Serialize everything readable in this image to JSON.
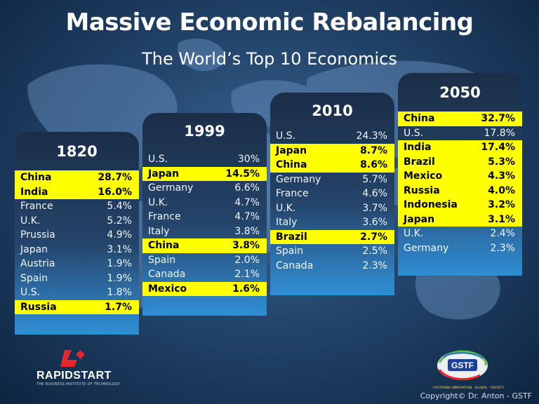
{
  "title": "Massive Economic Rebalancing",
  "subtitle": "The World’s Top 10 Economics",
  "panels": [
    {
      "year": "1820",
      "rows": [
        {
          "country": "China",
          "pct": "28.7%",
          "highlight": true
        },
        {
          "country": "India",
          "pct": "16.0%",
          "highlight": true
        },
        {
          "country": "France",
          "pct": "5.4%",
          "highlight": false
        },
        {
          "country": "U.K.",
          "pct": "5.2%",
          "highlight": false
        },
        {
          "country": "Prussia",
          "pct": "4.9%",
          "highlight": false
        },
        {
          "country": "Japan",
          "pct": "3.1%",
          "highlight": false
        },
        {
          "country": "Austria",
          "pct": "1.9%",
          "highlight": false
        },
        {
          "country": "Spain",
          "pct": "1.9%",
          "highlight": false
        },
        {
          "country": "U.S.",
          "pct": "1.8%",
          "highlight": false
        },
        {
          "country": "Russia",
          "pct": "1.7%",
          "highlight": true
        }
      ]
    },
    {
      "year": "1999",
      "rows": [
        {
          "country": "U.S.",
          "pct": "30%",
          "highlight": false
        },
        {
          "country": "Japan",
          "pct": "14.5%",
          "highlight": true
        },
        {
          "country": "Germany",
          "pct": "6.6%",
          "highlight": false
        },
        {
          "country": "U.K.",
          "pct": "4.7%",
          "highlight": false
        },
        {
          "country": "France",
          "pct": "4.7%",
          "highlight": false
        },
        {
          "country": "Italy",
          "pct": "3.8%",
          "highlight": false
        },
        {
          "country": "China",
          "pct": "3.8%",
          "highlight": true
        },
        {
          "country": "Spain",
          "pct": "2.0%",
          "highlight": false
        },
        {
          "country": "Canada",
          "pct": "2.1%",
          "highlight": false
        },
        {
          "country": "Mexico",
          "pct": "1.6%",
          "highlight": true
        }
      ]
    },
    {
      "year": "2010",
      "rows": [
        {
          "country": "U.S.",
          "pct": "24.3%",
          "highlight": false
        },
        {
          "country": "Japan",
          "pct": "8.7%",
          "highlight": true
        },
        {
          "country": "China",
          "pct": "8.6%",
          "highlight": true
        },
        {
          "country": "Germany",
          "pct": "5.7%",
          "highlight": false
        },
        {
          "country": "France",
          "pct": "4.6%",
          "highlight": false
        },
        {
          "country": "U.K.",
          "pct": "3.7%",
          "highlight": false
        },
        {
          "country": "Italy",
          "pct": "3.6%",
          "highlight": false
        },
        {
          "country": "Brazil",
          "pct": "2.7%",
          "highlight": true
        },
        {
          "country": "Spain",
          "pct": "2.5%",
          "highlight": false
        },
        {
          "country": "Canada",
          "pct": "2.3%",
          "highlight": false
        }
      ]
    },
    {
      "year": "2050",
      "rows": [
        {
          "country": "China",
          "pct": "32.7%",
          "highlight": true
        },
        {
          "country": "U.S.",
          "pct": "17.8%",
          "highlight": false
        },
        {
          "country": "India",
          "pct": "17.4%",
          "highlight": true
        },
        {
          "country": "Brazil",
          "pct": "5.3%",
          "highlight": true
        },
        {
          "country": "Mexico",
          "pct": "4.3%",
          "highlight": true
        },
        {
          "country": "Russia",
          "pct": "4.0%",
          "highlight": true
        },
        {
          "country": "Indonesia",
          "pct": "3.2%",
          "highlight": true
        },
        {
          "country": "Japan",
          "pct": "3.1%",
          "highlight": true
        },
        {
          "country": "U.K.",
          "pct": "2.4%",
          "highlight": false
        },
        {
          "country": "Germany",
          "pct": "2.3%",
          "highlight": false
        }
      ]
    }
  ],
  "logos": {
    "left_text": "RAPIDSTART",
    "left_tagline": "THE BUSINESS INSTITUTE OF TECHNOLOGY",
    "right_text": "GSTF",
    "right_tagline": "FOSTERING INNOVATION · GLOBAL · SOCIETY"
  },
  "copyright": "Copyright© Dr. Anton - GSTF",
  "colors": {
    "highlight": "#ffff00",
    "background": "#23456c",
    "panel_top": "#1b2e48",
    "panel_bottom": "#2f8ed4"
  }
}
